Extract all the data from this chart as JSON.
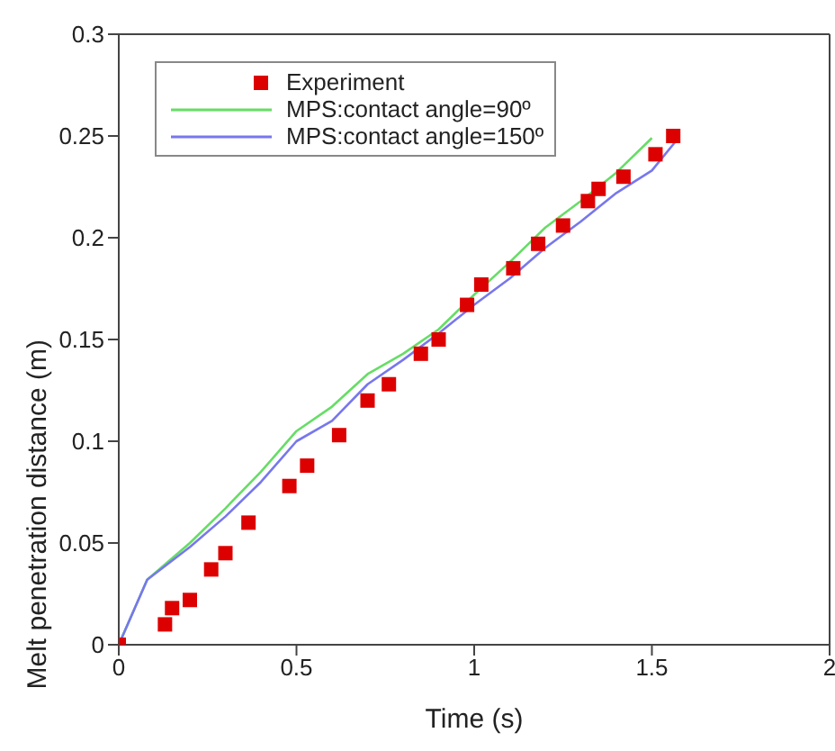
{
  "chart_data": {
    "type": "scatter",
    "xlabel": "Time (s)",
    "ylabel": "Melt penetration distance (m)",
    "xlim": [
      0,
      2
    ],
    "xticks": [
      0,
      0.5,
      1,
      1.5,
      2
    ],
    "ylim": [
      0,
      0.3
    ],
    "yticks": [
      0,
      0.05,
      0.1,
      0.15,
      0.2,
      0.25,
      0.3
    ],
    "legend": "top left",
    "series": [
      {
        "name": "Experiment",
        "marker": "square",
        "color": "#dd0000",
        "x": [
          0,
          0.13,
          0.15,
          0.2,
          0.26,
          0.3,
          0.365,
          0.48,
          0.53,
          0.62,
          0.7,
          0.76,
          0.85,
          0.9,
          0.98,
          1.02,
          1.11,
          1.18,
          1.25,
          1.32,
          1.35,
          1.42,
          1.51,
          1.56
        ],
        "values": [
          0,
          0.01,
          0.018,
          0.022,
          0.037,
          0.045,
          0.06,
          0.078,
          0.088,
          0.103,
          0.12,
          0.128,
          0.143,
          0.15,
          0.167,
          0.177,
          0.185,
          0.197,
          0.206,
          0.218,
          0.224,
          0.23,
          0.241,
          0.25
        ]
      },
      {
        "name": "MPS:contact angle=90º",
        "type": "line",
        "marker": "none",
        "color": "#66dd66",
        "x": [
          0,
          0.08,
          0.2,
          0.3,
          0.4,
          0.5,
          0.6,
          0.7,
          0.8,
          0.9,
          1.0,
          1.1,
          1.2,
          1.3,
          1.4,
          1.5
        ],
        "values": [
          0,
          0.032,
          0.05,
          0.067,
          0.085,
          0.105,
          0.117,
          0.133,
          0.143,
          0.155,
          0.172,
          0.188,
          0.205,
          0.218,
          0.232,
          0.249
        ]
      },
      {
        "name": "MPS:contact angle=150º",
        "type": "line",
        "marker": "none",
        "color": "#7777ee",
        "x": [
          0,
          0.08,
          0.2,
          0.3,
          0.4,
          0.5,
          0.6,
          0.7,
          0.8,
          0.9,
          1.0,
          1.1,
          1.2,
          1.3,
          1.4,
          1.5,
          1.57
        ],
        "values": [
          0,
          0.032,
          0.048,
          0.063,
          0.08,
          0.1,
          0.11,
          0.128,
          0.14,
          0.153,
          0.167,
          0.18,
          0.195,
          0.208,
          0.222,
          0.233,
          0.248
        ]
      }
    ]
  }
}
